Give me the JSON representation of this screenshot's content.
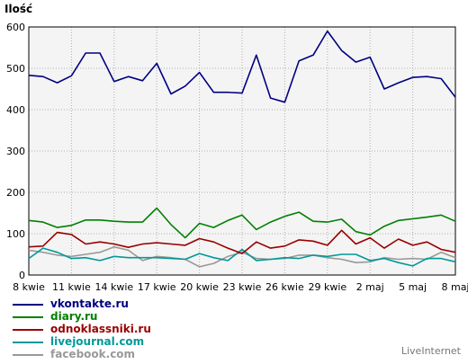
{
  "chart_data": {
    "type": "line",
    "ylabel": "Ilość",
    "ylim": [
      0,
      600
    ],
    "yticks": [
      0,
      100,
      200,
      300,
      400,
      500,
      600
    ],
    "grid": true,
    "legend_position": "bottom-left",
    "x_tick_labels": [
      "8 kwie",
      "11 kwie",
      "14 kwie",
      "17 kwie",
      "20 kwie",
      "23 kwie",
      "26 kwie",
      "29 kwie",
      "2 maj",
      "5 maj",
      "8 maj"
    ],
    "x_tick_every": 3,
    "series": [
      {
        "name": "vkontakte.ru",
        "color": "#000080",
        "values": [
          483,
          480,
          465,
          482,
          537,
          537,
          468,
          480,
          470,
          512,
          438,
          457,
          490,
          442,
          442,
          440,
          532,
          428,
          418,
          518,
          532,
          590,
          543,
          515,
          527,
          450,
          465,
          478,
          480,
          475,
          430
        ]
      },
      {
        "name": "diary.ru",
        "color": "#008000",
        "values": [
          132,
          128,
          115,
          120,
          133,
          133,
          130,
          128,
          128,
          162,
          122,
          90,
          125,
          115,
          132,
          145,
          110,
          128,
          142,
          152,
          130,
          128,
          135,
          105,
          97,
          118,
          132,
          136,
          140,
          145,
          130
        ]
      },
      {
        "name": "odnoklassniki.ru",
        "color": "#990000",
        "values": [
          68,
          70,
          103,
          98,
          75,
          80,
          75,
          67,
          75,
          78,
          75,
          72,
          88,
          80,
          65,
          52,
          80,
          65,
          70,
          85,
          82,
          72,
          108,
          75,
          90,
          65,
          87,
          72,
          80,
          62,
          55
        ]
      },
      {
        "name": "livejournal.com",
        "color": "#009999",
        "values": [
          40,
          65,
          55,
          40,
          42,
          35,
          45,
          42,
          42,
          42,
          40,
          38,
          52,
          42,
          35,
          62,
          35,
          38,
          42,
          40,
          48,
          45,
          50,
          50,
          35,
          40,
          30,
          22,
          40,
          40,
          32
        ]
      },
      {
        "name": "facebook.com",
        "color": "#999999",
        "values": [
          60,
          55,
          48,
          45,
          50,
          55,
          68,
          60,
          35,
          45,
          42,
          38,
          20,
          28,
          45,
          55,
          40,
          38,
          40,
          48,
          48,
          42,
          38,
          30,
          32,
          42,
          38,
          40,
          38,
          55,
          42
        ]
      }
    ]
  },
  "credit": "LiveInternet"
}
